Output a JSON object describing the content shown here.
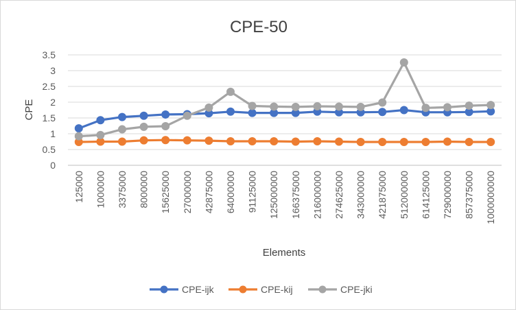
{
  "chart_data": {
    "type": "line",
    "title": "CPE-50",
    "xlabel": "Elements",
    "ylabel": "CPE",
    "ylim": [
      0,
      3.5
    ],
    "yticks": [
      "0",
      "0.5",
      "1",
      "1.5",
      "2",
      "2.5",
      "3",
      "3.5"
    ],
    "grid": true,
    "legend_position": "bottom",
    "categories": [
      "125000",
      "1000000",
      "3375000",
      "8000000",
      "15625000",
      "27000000",
      "42875000",
      "64000000",
      "91125000",
      "125000000",
      "166375000",
      "216000000",
      "274625000",
      "343000000",
      "421875000",
      "512000000",
      "614125000",
      "729000000",
      "857375000",
      "1000000000"
    ],
    "series": [
      {
        "name": "CPE-ijk",
        "color": "#4472c4",
        "values": [
          1.17,
          1.43,
          1.53,
          1.57,
          1.61,
          1.62,
          1.65,
          1.7,
          1.66,
          1.66,
          1.66,
          1.7,
          1.68,
          1.68,
          1.69,
          1.75,
          1.68,
          1.68,
          1.69,
          1.71
        ]
      },
      {
        "name": "CPE-kij",
        "color": "#ed7d31",
        "values": [
          0.74,
          0.75,
          0.75,
          0.79,
          0.8,
          0.79,
          0.78,
          0.76,
          0.76,
          0.76,
          0.75,
          0.76,
          0.75,
          0.74,
          0.74,
          0.74,
          0.74,
          0.75,
          0.74,
          0.74
        ]
      },
      {
        "name": "CPE-jki",
        "color": "#a5a5a5",
        "values": [
          0.92,
          0.96,
          1.14,
          1.22,
          1.24,
          1.57,
          1.83,
          2.33,
          1.88,
          1.86,
          1.85,
          1.87,
          1.86,
          1.85,
          1.99,
          3.26,
          1.82,
          1.84,
          1.89,
          1.91
        ]
      }
    ]
  }
}
